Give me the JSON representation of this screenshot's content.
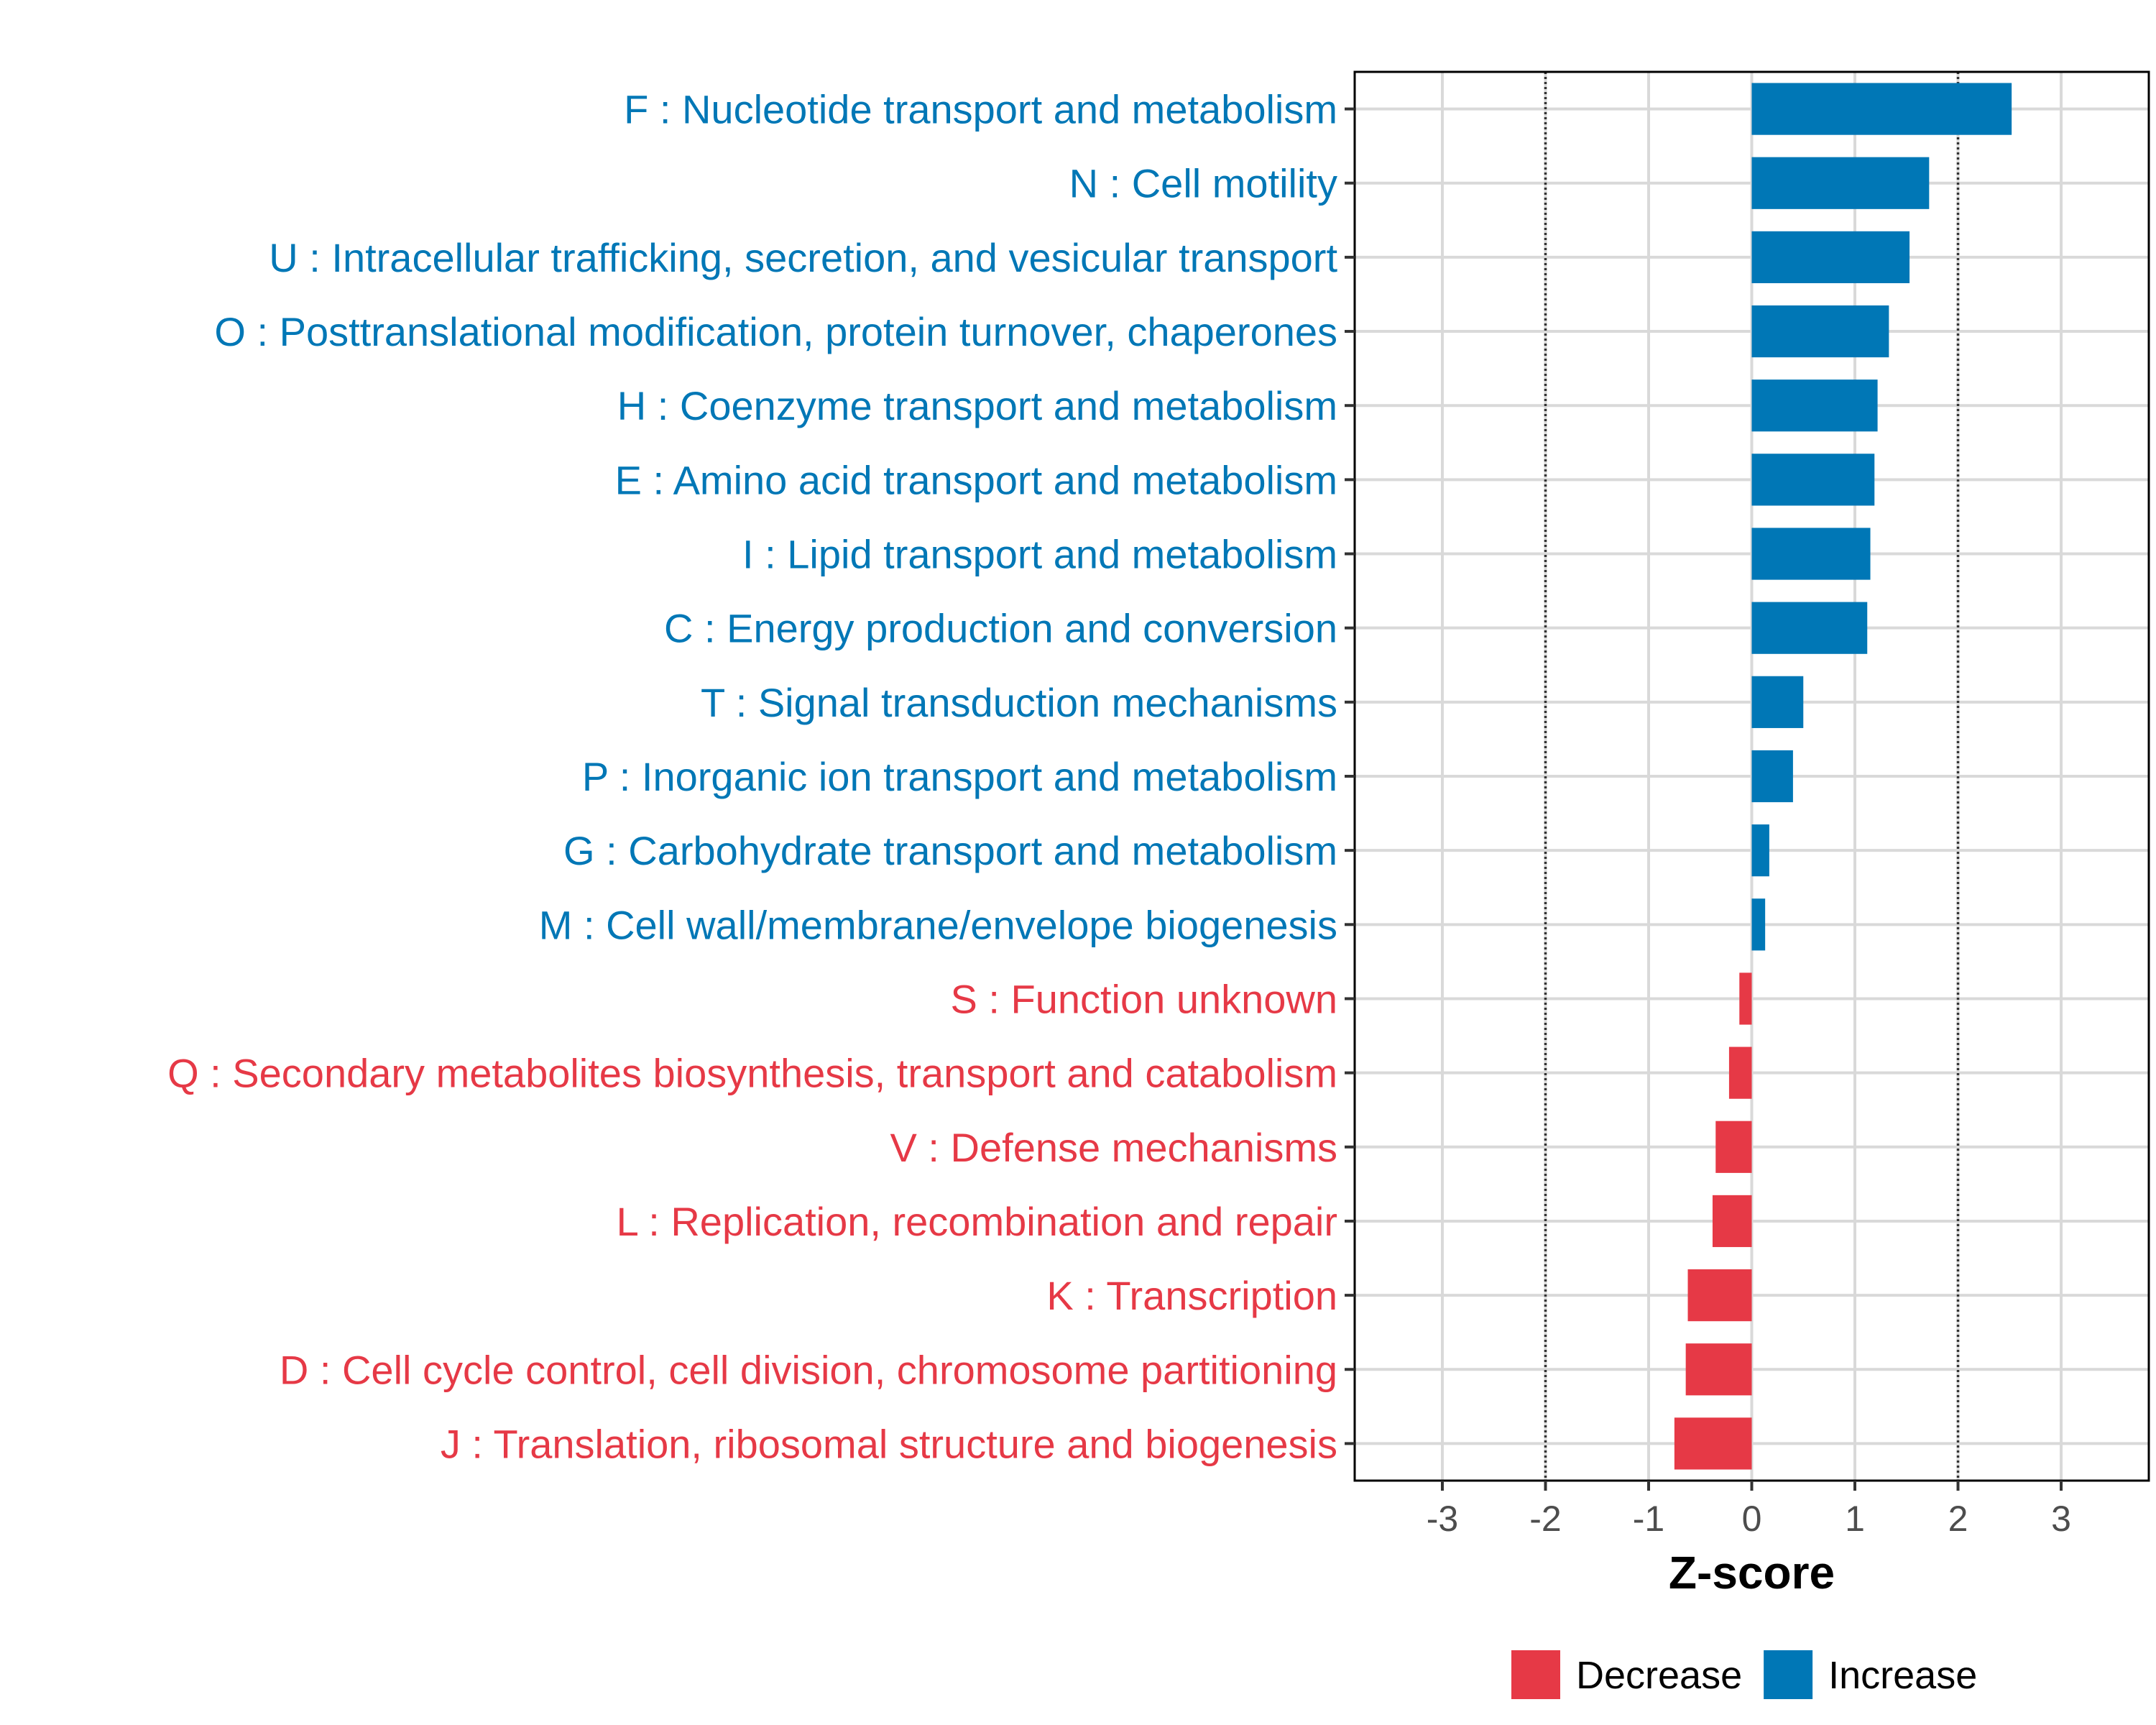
{
  "chart_data": {
    "type": "bar",
    "orientation": "horizontal",
    "title": "",
    "xlabel": "Z-score",
    "ylabel": "",
    "xlim": [
      -3.85,
      3.85
    ],
    "xticks": [
      -3,
      -2,
      -1,
      0,
      1,
      2,
      3
    ],
    "xtick_labels": [
      "-3",
      "-2",
      "-1",
      "0",
      "1",
      "2",
      "3"
    ],
    "reference_lines": [
      -2,
      2
    ],
    "grid": true,
    "legend_position": "bottom",
    "colors": {
      "Decrease": "#E63946",
      "Increase": "#0077B6"
    },
    "legend": [
      {
        "name": "Decrease",
        "color": "#E63946"
      },
      {
        "name": "Increase",
        "color": "#0077B6"
      }
    ],
    "categories": [
      "F : Nucleotide transport and metabolism",
      "N : Cell motility",
      "U : Intracellular trafficking, secretion, and vesicular transport",
      "O : Posttranslational modification, protein turnover, chaperones",
      "H : Coenzyme transport and metabolism",
      "E : Amino acid transport and metabolism",
      "I : Lipid transport and metabolism",
      "C : Energy production and conversion",
      "T : Signal transduction mechanisms",
      "P : Inorganic ion transport and metabolism",
      "G : Carbohydrate transport and metabolism",
      "M : Cell wall/membrane/envelope biogenesis",
      "S : Function unknown",
      "Q : Secondary metabolites biosynthesis, transport and catabolism",
      "V : Defense mechanisms",
      "L : Replication, recombination and repair",
      "K : Transcription",
      "D : Cell cycle control, cell division, chromosome partitioning",
      "J : Translation, ribosomal structure and biogenesis"
    ],
    "values": [
      2.52,
      1.72,
      1.53,
      1.33,
      1.22,
      1.19,
      1.15,
      1.12,
      0.5,
      0.4,
      0.17,
      0.13,
      -0.12,
      -0.22,
      -0.35,
      -0.38,
      -0.62,
      -0.64,
      -0.75
    ],
    "groups": [
      "Increase",
      "Increase",
      "Increase",
      "Increase",
      "Increase",
      "Increase",
      "Increase",
      "Increase",
      "Increase",
      "Increase",
      "Increase",
      "Increase",
      "Decrease",
      "Decrease",
      "Decrease",
      "Decrease",
      "Decrease",
      "Decrease",
      "Decrease"
    ]
  }
}
